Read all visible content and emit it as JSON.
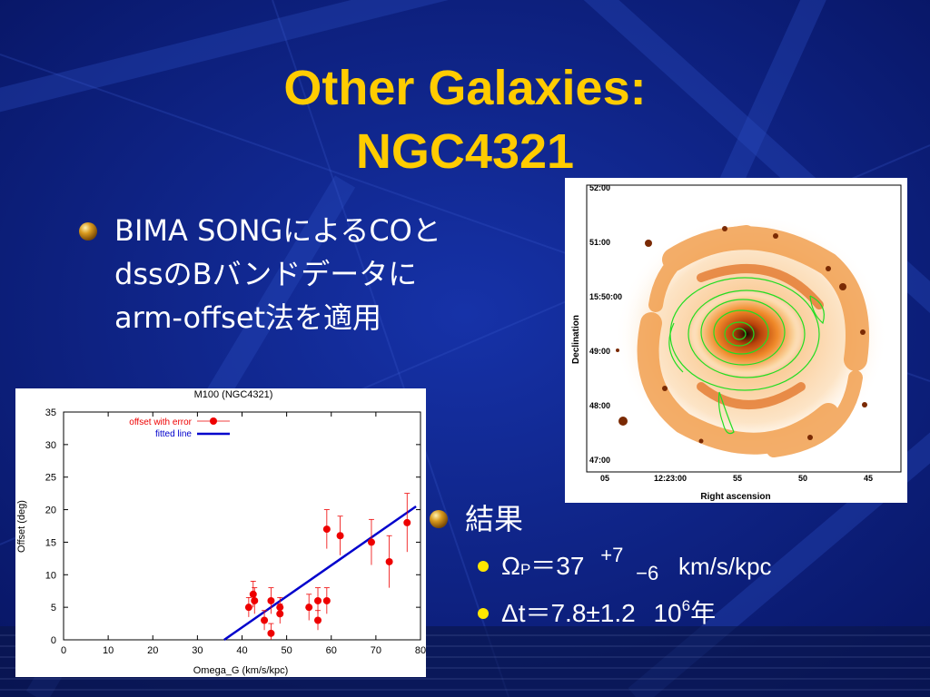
{
  "slide": {
    "title_line1": "Other Galaxies:",
    "title_line2": "NGC4321",
    "bullet1": {
      "line1": "BIMA SONGによるCOと",
      "line2": "dssのBバンドデータに",
      "line3": "arm-offset法を適用"
    },
    "bullet2": {
      "label": "結果",
      "omega_prefix": "Ω",
      "omega_sub": "P",
      "omega_value": "＝37",
      "omega_plus": "+7",
      "omega_minus": "−6",
      "omega_unit": "km/s/kpc",
      "dt_prefix": "Δt＝7.8±1.2",
      "dt_base": "10",
      "dt_exp": "6",
      "dt_unit": "年"
    },
    "colors": {
      "title": "#ffcc00",
      "background": "#0a1a7a",
      "text": "#ffffff",
      "sub_bullet": "#ffe600"
    }
  },
  "galaxy_image": {
    "dec_labels": [
      "52:00",
      "51:00",
      "15:50:00",
      "49:00",
      "48:00",
      "47:00"
    ],
    "ra_labels": [
      "05",
      "12:23:00",
      "55",
      "50",
      "45"
    ],
    "ylabel": "Declination",
    "xlabel": "Right ascension"
  },
  "chart_data": {
    "type": "scatter",
    "title": "M100 (NGC4321)",
    "xlabel": "Omega_G (km/s/kpc)",
    "ylabel": "Offset (deg)",
    "xlim": [
      0,
      80
    ],
    "ylim": [
      0,
      35
    ],
    "xticks": [
      0,
      10,
      20,
      30,
      40,
      50,
      60,
      70,
      80
    ],
    "yticks": [
      0,
      5,
      10,
      15,
      20,
      25,
      30,
      35
    ],
    "legend_position": "top-left",
    "series": [
      {
        "name": "offset with error",
        "color": "#ee0000",
        "points": [
          {
            "x": 41.5,
            "y": 5,
            "err": 1.5
          },
          {
            "x": 42.5,
            "y": 7,
            "err": 2
          },
          {
            "x": 42.8,
            "y": 6,
            "err": 2
          },
          {
            "x": 45,
            "y": 3,
            "err": 1.5
          },
          {
            "x": 46.5,
            "y": 1,
            "err": 1.5
          },
          {
            "x": 46.5,
            "y": 6,
            "err": 2
          },
          {
            "x": 48.5,
            "y": 5,
            "err": 1.5
          },
          {
            "x": 48.5,
            "y": 4,
            "err": 1.5
          },
          {
            "x": 55,
            "y": 5,
            "err": 2
          },
          {
            "x": 57,
            "y": 6,
            "err": 2
          },
          {
            "x": 57,
            "y": 3,
            "err": 1.5
          },
          {
            "x": 59,
            "y": 17,
            "err": 3
          },
          {
            "x": 59,
            "y": 6,
            "err": 2
          },
          {
            "x": 62,
            "y": 16,
            "err": 3
          },
          {
            "x": 69,
            "y": 15,
            "err": 3.5
          },
          {
            "x": 73,
            "y": 12,
            "err": 4
          },
          {
            "x": 77,
            "y": 18,
            "err": 4.5
          }
        ]
      },
      {
        "name": "fitted line",
        "color": "#0000cc",
        "line": [
          {
            "x": 36,
            "y": 0
          },
          {
            "x": 79,
            "y": 20.5
          }
        ]
      }
    ]
  }
}
